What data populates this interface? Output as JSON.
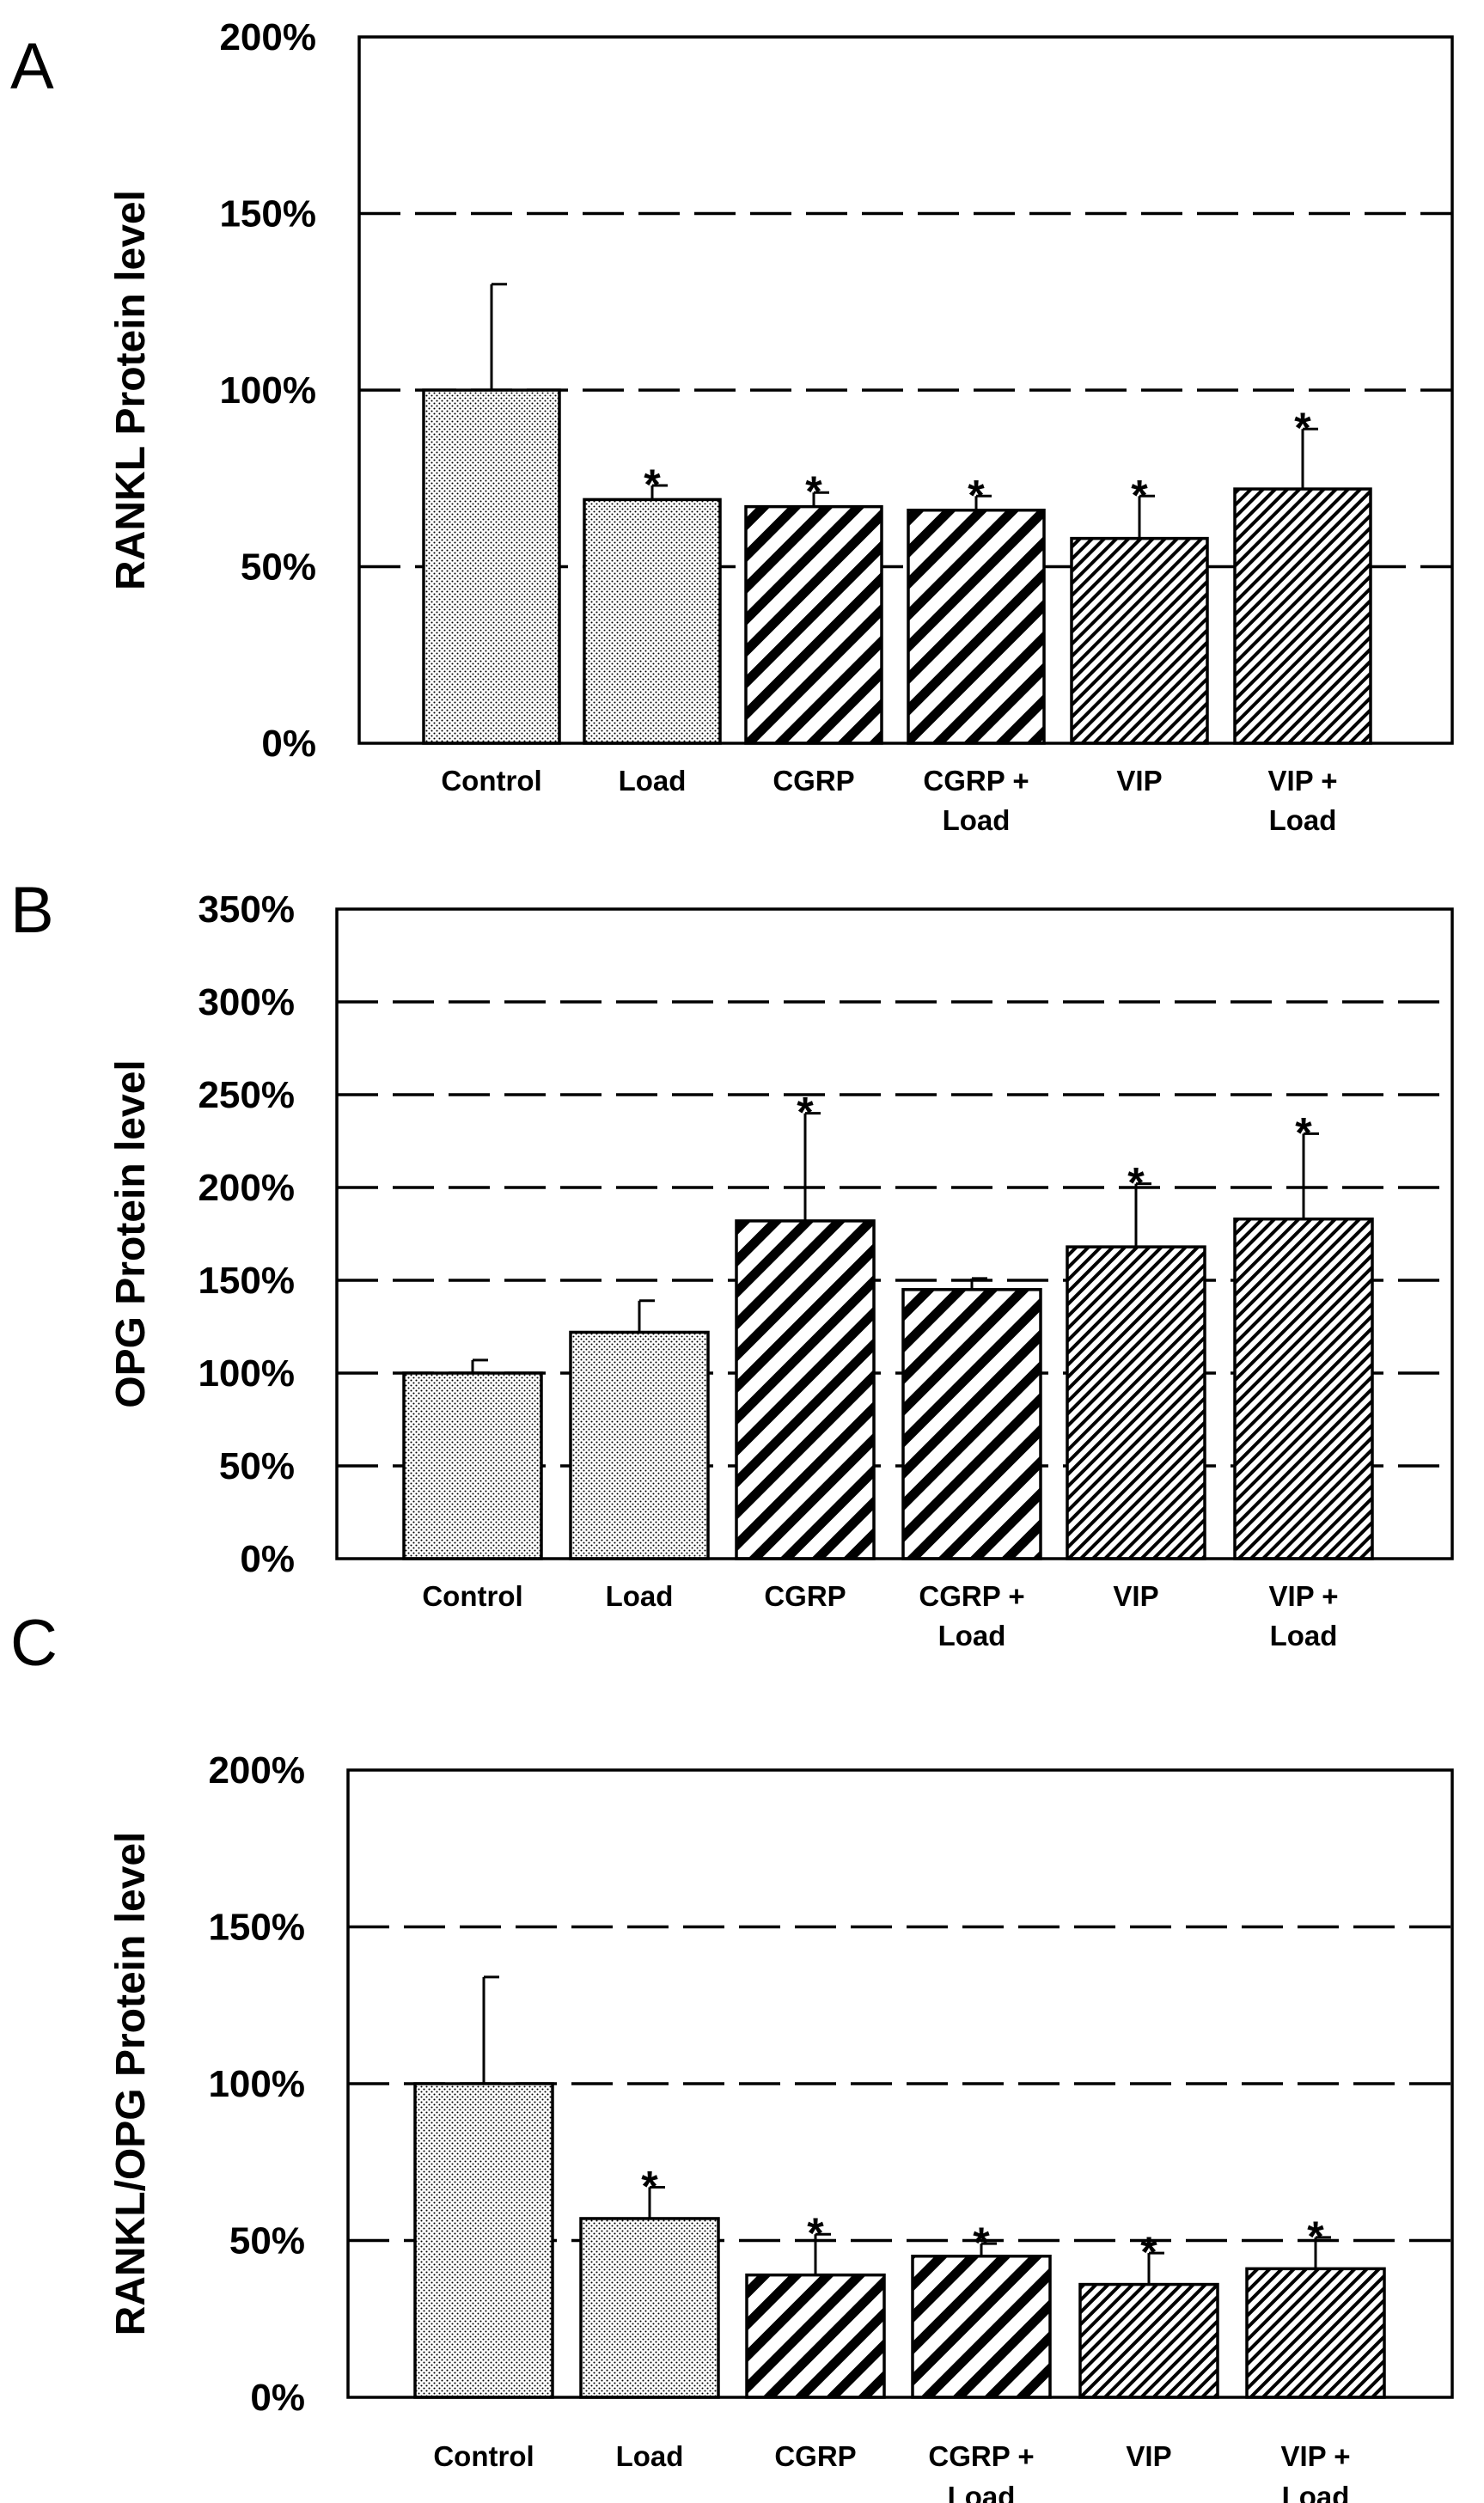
{
  "chart_data": [
    {
      "panel": "A",
      "type": "bar",
      "ylabel": "RANKL Protein level",
      "xlabel": "",
      "ylim": [
        0,
        200
      ],
      "yticks": [
        "0%",
        "50%",
        "100%",
        "150%",
        "200%"
      ],
      "gridlines": [
        50,
        100,
        150
      ],
      "categories": [
        {
          "line1": "Control",
          "line2": ""
        },
        {
          "line1": "Load",
          "line2": ""
        },
        {
          "line1": "CGRP",
          "line2": ""
        },
        {
          "line1": "CGRP +",
          "line2": "Load"
        },
        {
          "line1": "VIP",
          "line2": ""
        },
        {
          "line1": "VIP +",
          "line2": "Load"
        }
      ],
      "values": [
        100,
        69,
        67,
        66,
        58,
        72
      ],
      "errors": [
        30,
        4,
        4,
        4,
        12,
        17
      ],
      "significance": [
        "",
        "*",
        "*",
        "*",
        "*",
        "*"
      ]
    },
    {
      "panel": "B",
      "type": "bar",
      "ylabel": "OPG Protein level",
      "xlabel": "",
      "ylim": [
        0,
        350
      ],
      "yticks": [
        "0%",
        "50%",
        "100%",
        "150%",
        "200%",
        "250%",
        "300%",
        "350%"
      ],
      "gridlines": [
        50,
        100,
        150,
        200,
        250,
        300
      ],
      "categories": [
        {
          "line1": "Control",
          "line2": ""
        },
        {
          "line1": "Load",
          "line2": ""
        },
        {
          "line1": "CGRP",
          "line2": ""
        },
        {
          "line1": "CGRP +",
          "line2": "Load"
        },
        {
          "line1": "VIP",
          "line2": ""
        },
        {
          "line1": "VIP +",
          "line2": "Load"
        }
      ],
      "values": [
        100,
        122,
        182,
        145,
        168,
        183
      ],
      "errors": [
        7,
        17,
        58,
        6,
        34,
        46
      ],
      "significance": [
        "",
        "",
        "*",
        "",
        "*",
        "*"
      ]
    },
    {
      "panel": "C",
      "type": "bar",
      "ylabel": "RANKL/OPG Protein level",
      "xlabel": "",
      "ylim": [
        0,
        200
      ],
      "yticks": [
        "0%",
        "50%",
        "100%",
        "150%",
        "200%"
      ],
      "gridlines": [
        50,
        100,
        150
      ],
      "categories": [
        {
          "line1": "Control",
          "line2": ""
        },
        {
          "line1": "Load",
          "line2": ""
        },
        {
          "line1": "CGRP",
          "line2": ""
        },
        {
          "line1": "CGRP +",
          "line2": "Load"
        },
        {
          "line1": "VIP",
          "line2": ""
        },
        {
          "line1": "VIP +",
          "line2": "Load"
        }
      ],
      "values": [
        100,
        57,
        39,
        45,
        36,
        41
      ],
      "errors": [
        34,
        10,
        13,
        4,
        10,
        10
      ],
      "significance": [
        "",
        "*",
        "*",
        "*",
        "*",
        "*"
      ]
    }
  ]
}
